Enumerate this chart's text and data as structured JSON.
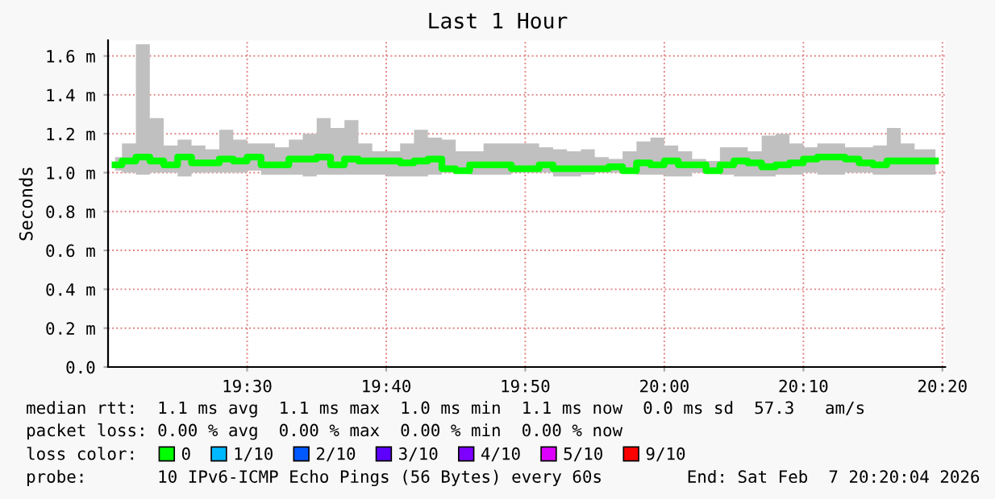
{
  "chart_data": {
    "type": "step",
    "title": "Last 1 Hour",
    "ylabel": "Seconds",
    "x": [
      19.3417,
      19.3583,
      19.375,
      19.3917,
      19.4083,
      19.425,
      19.4417,
      19.4583,
      19.475,
      19.4917,
      19.5083,
      19.525,
      19.5417,
      19.5583,
      19.575,
      19.5917,
      19.6083,
      19.625,
      19.6417,
      19.6583,
      19.675,
      19.6917,
      19.7083,
      19.725,
      19.7417,
      19.7583,
      19.775,
      19.7917,
      19.8083,
      19.825,
      19.8417,
      19.8583,
      19.875,
      19.8917,
      19.9083,
      19.925,
      19.9417,
      19.9583,
      19.975,
      19.9917,
      20.0083,
      20.025,
      20.0417,
      20.0583,
      20.075,
      20.0917,
      20.1083,
      20.125,
      20.1417,
      20.1583,
      20.175,
      20.1917,
      20.2083,
      20.225,
      20.2417,
      20.2583,
      20.275,
      20.2917,
      20.3083,
      20.325
    ],
    "series": [
      {
        "name": "0",
        "color": "#00ff00",
        "values": [
          1.04,
          1.06,
          1.08,
          1.06,
          1.04,
          1.08,
          1.05,
          1.05,
          1.07,
          1.06,
          1.08,
          1.04,
          1.04,
          1.07,
          1.07,
          1.08,
          1.04,
          1.07,
          1.06,
          1.06,
          1.06,
          1.05,
          1.06,
          1.07,
          1.02,
          1.01,
          1.04,
          1.04,
          1.04,
          1.02,
          1.02,
          1.04,
          1.02,
          1.02,
          1.02,
          1.02,
          1.03,
          1.01,
          1.05,
          1.04,
          1.06,
          1.04,
          1.04,
          1.01,
          1.04,
          1.06,
          1.05,
          1.03,
          1.04,
          1.05,
          1.07,
          1.08,
          1.08,
          1.07,
          1.05,
          1.04,
          1.06,
          1.06,
          1.06,
          1.06
        ],
        "lower": [
          1.01,
          1.0,
          0.99,
          1.0,
          1.0,
          0.98,
          1.0,
          1.0,
          1.0,
          1.0,
          1.01,
          0.99,
          0.99,
          0.99,
          0.98,
          0.99,
          0.99,
          0.99,
          0.99,
          0.99,
          0.98,
          0.98,
          0.98,
          0.99,
          1.0,
          1.0,
          0.99,
          0.99,
          0.99,
          1.0,
          1.0,
          1.0,
          0.98,
          0.98,
          0.99,
          1.0,
          1.0,
          1.0,
          0.99,
          0.99,
          0.98,
          0.98,
          1.0,
          1.0,
          0.99,
          0.98,
          0.98,
          0.98,
          0.99,
          0.99,
          1.0,
          0.99,
          0.99,
          1.0,
          1.0,
          0.99,
          0.99,
          0.99,
          0.99,
          0.99
        ],
        "upper": [
          1.08,
          1.15,
          1.66,
          1.28,
          1.14,
          1.17,
          1.14,
          1.12,
          1.22,
          1.17,
          1.15,
          1.15,
          1.13,
          1.17,
          1.2,
          1.28,
          1.23,
          1.27,
          1.15,
          1.11,
          1.11,
          1.15,
          1.22,
          1.18,
          1.17,
          1.11,
          1.11,
          1.15,
          1.15,
          1.15,
          1.15,
          1.13,
          1.12,
          1.11,
          1.12,
          1.08,
          1.07,
          1.11,
          1.16,
          1.18,
          1.14,
          1.11,
          1.07,
          1.06,
          1.13,
          1.13,
          1.11,
          1.19,
          1.2,
          1.15,
          1.13,
          1.15,
          1.15,
          1.13,
          1.13,
          1.14,
          1.23,
          1.15,
          1.12,
          1.12
        ]
      },
      {
        "name": "1/10",
        "color": "#00b8ff",
        "values": [
          null,
          null,
          null,
          null,
          null,
          null,
          null,
          null,
          null,
          null,
          null,
          null,
          null,
          null,
          null,
          null,
          null,
          null,
          null,
          null,
          null,
          null,
          null,
          null,
          null,
          null,
          null,
          null,
          null,
          null,
          null,
          null,
          null,
          null,
          null,
          null,
          null,
          null,
          null,
          null,
          null,
          null,
          null,
          null,
          null,
          null,
          null,
          null,
          null,
          null,
          null,
          null,
          null,
          null,
          null,
          null,
          null,
          null,
          null,
          null
        ]
      },
      {
        "name": "2/10",
        "color": "#0059ff",
        "values": [
          null,
          null,
          null,
          null,
          null,
          null,
          null,
          null,
          null,
          null,
          null,
          null,
          null,
          null,
          null,
          null,
          null,
          null,
          null,
          null,
          null,
          null,
          null,
          null,
          null,
          null,
          null,
          null,
          null,
          null,
          null,
          null,
          null,
          null,
          null,
          null,
          null,
          null,
          null,
          null,
          null,
          null,
          null,
          null,
          null,
          null,
          null,
          null,
          null,
          null,
          null,
          null,
          null,
          null,
          null,
          null,
          null,
          null,
          null,
          null
        ]
      },
      {
        "name": "3/10",
        "color": "#5e00ff",
        "values": [
          null,
          null,
          null,
          null,
          null,
          null,
          null,
          null,
          null,
          null,
          null,
          null,
          null,
          null,
          null,
          null,
          null,
          null,
          null,
          null,
          null,
          null,
          null,
          null,
          null,
          null,
          null,
          null,
          null,
          null,
          null,
          null,
          null,
          null,
          null,
          null,
          null,
          null,
          null,
          null,
          null,
          null,
          null,
          null,
          null,
          null,
          null,
          null,
          null,
          null,
          null,
          null,
          null,
          null,
          null,
          null,
          null,
          null,
          null,
          null
        ]
      },
      {
        "name": "4/10",
        "color": "#7e00ff",
        "values": [
          null,
          null,
          null,
          null,
          null,
          null,
          null,
          null,
          null,
          null,
          null,
          null,
          null,
          null,
          null,
          null,
          null,
          null,
          null,
          null,
          null,
          null,
          null,
          null,
          null,
          null,
          null,
          null,
          null,
          null,
          null,
          null,
          null,
          null,
          null,
          null,
          null,
          null,
          null,
          null,
          null,
          null,
          null,
          null,
          null,
          null,
          null,
          null,
          null,
          null,
          null,
          null,
          null,
          null,
          null,
          null,
          null,
          null,
          null,
          null
        ]
      },
      {
        "name": "5/10",
        "color": "#dd00ff",
        "values": [
          null,
          null,
          null,
          null,
          null,
          null,
          null,
          null,
          null,
          null,
          null,
          null,
          null,
          null,
          null,
          null,
          null,
          null,
          null,
          null,
          null,
          null,
          null,
          null,
          null,
          null,
          null,
          null,
          null,
          null,
          null,
          null,
          null,
          null,
          null,
          null,
          null,
          null,
          null,
          null,
          null,
          null,
          null,
          null,
          null,
          null,
          null,
          null,
          null,
          null,
          null,
          null,
          null,
          null,
          null,
          null,
          null,
          null,
          null,
          null
        ]
      },
      {
        "name": "9/10",
        "color": "#ff0000",
        "values": [
          null,
          null,
          null,
          null,
          null,
          null,
          null,
          null,
          null,
          null,
          null,
          null,
          null,
          null,
          null,
          null,
          null,
          null,
          null,
          null,
          null,
          null,
          null,
          null,
          null,
          null,
          null,
          null,
          null,
          null,
          null,
          null,
          null,
          null,
          null,
          null,
          null,
          null,
          null,
          null,
          null,
          null,
          null,
          null,
          null,
          null,
          null,
          null,
          null,
          null,
          null,
          null,
          null,
          null,
          null,
          null,
          null,
          null,
          null,
          null
        ]
      }
    ],
    "legend": "bottom",
    "legend_title": "loss color:",
    "xlim": [
      19.3333,
      20.3367
    ],
    "xticks": [
      {
        "value": 19.5,
        "label": "19:30"
      },
      {
        "value": 19.6667,
        "label": "19:40"
      },
      {
        "value": 19.8333,
        "label": "19:50"
      },
      {
        "value": 20.0,
        "label": "20:00"
      },
      {
        "value": 20.1667,
        "label": "20:10"
      },
      {
        "value": 20.3333,
        "label": "20:20"
      }
    ],
    "ylim": [
      0,
      1.68
    ],
    "yticks": [
      {
        "value": 0,
        "label": "0.0"
      },
      {
        "value": 0.2,
        "label": "0.2 m"
      },
      {
        "value": 0.4,
        "label": "0.4 m"
      },
      {
        "value": 0.6,
        "label": "0.6 m"
      },
      {
        "value": 0.8,
        "label": "0.8 m"
      },
      {
        "value": 1.0,
        "label": "1.0 m"
      },
      {
        "value": 1.2,
        "label": "1.2 m"
      },
      {
        "value": 1.4,
        "label": "1.4 m"
      },
      {
        "value": 1.6,
        "label": "1.6 m"
      }
    ],
    "grid": true,
    "annotations": [
      "median rtt:  1.1 ms avg  1.1 ms max  1.0 ms min  1.1 ms now  0.0 ms sd  57.3   am/s",
      "packet loss: 0.00 % avg  0.00 % max  0.00 % min  0.00 % now",
      "probe:       10 IPv6-ICMP Echo Pings (56 Bytes) every 60s",
      "End: Sat Feb  7 20:20:04 2026"
    ]
  }
}
